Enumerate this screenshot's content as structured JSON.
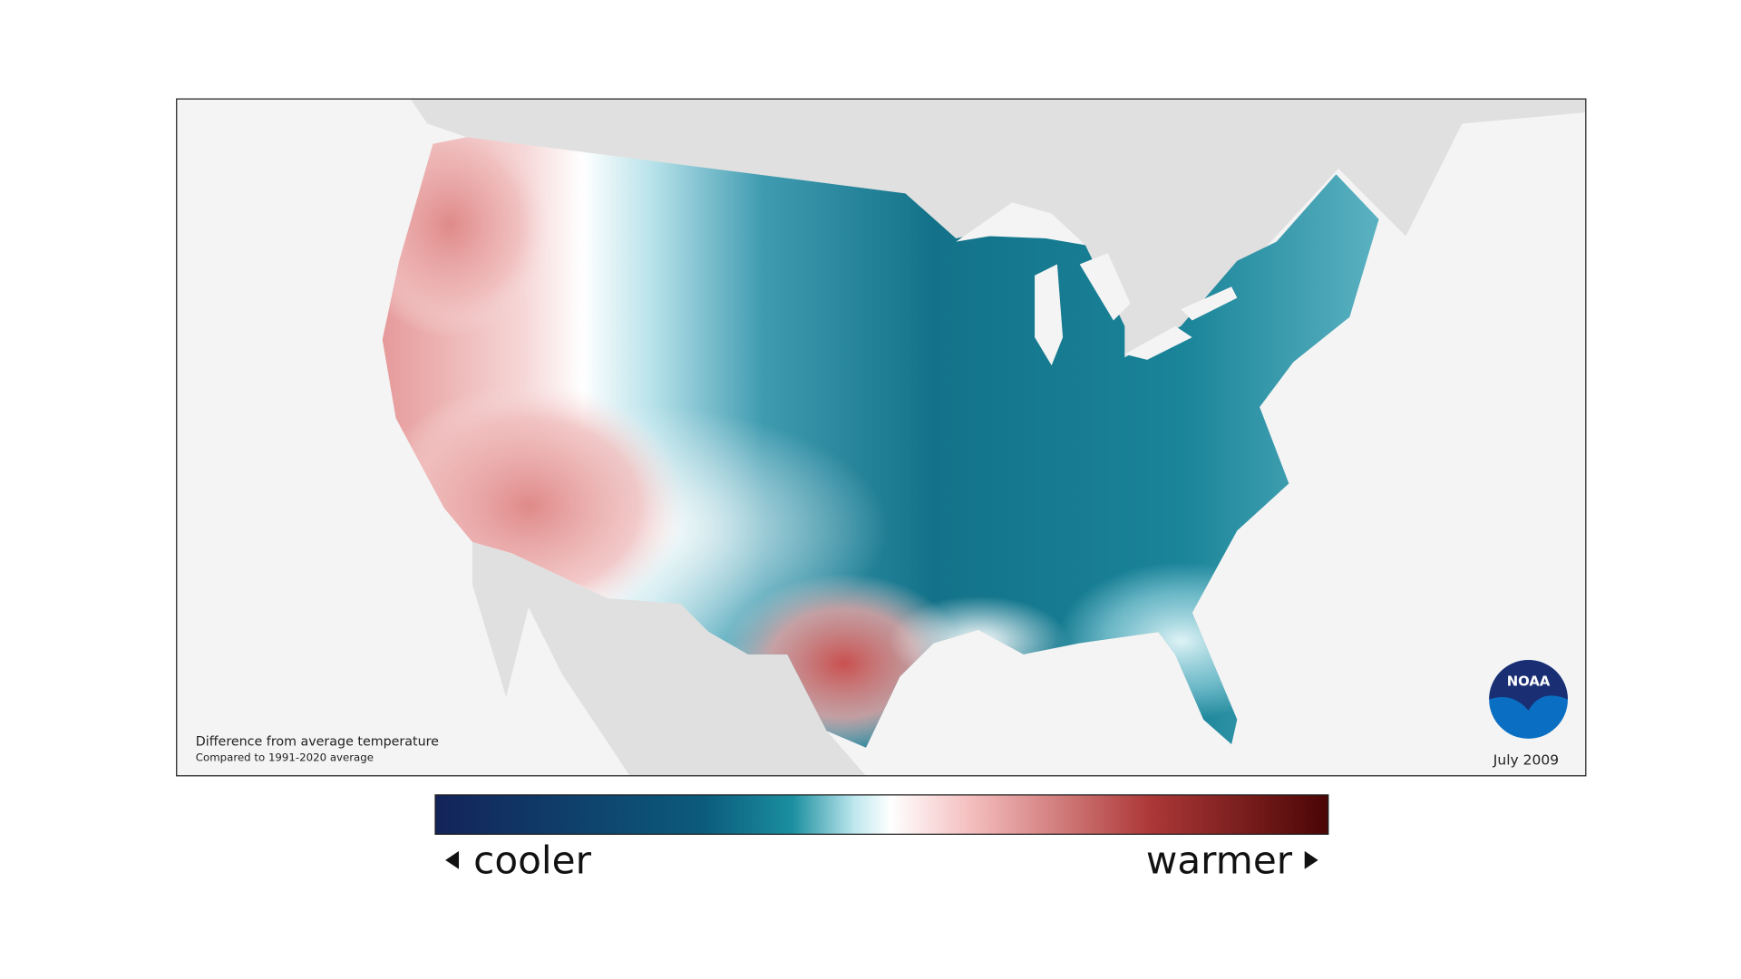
{
  "map": {
    "caption": "Difference from average temperature",
    "subcaption": "Compared to 1991-2020 average",
    "date": "July 2009",
    "logo": "NOAA",
    "legend": {
      "low_label": "cooler",
      "high_label": "warmer"
    }
  }
}
